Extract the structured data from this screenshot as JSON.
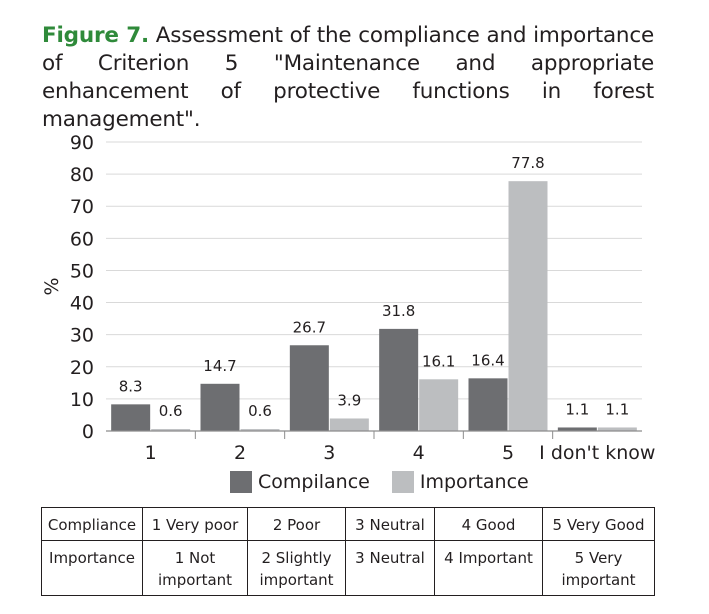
{
  "caption": {
    "figure_label": "Figure 7.",
    "text": "Assessment of the compliance and importance of Criterion 5 \"Maintenance and appropriate enhancement of protective functions in forest management\"."
  },
  "chart_data": {
    "type": "bar",
    "categories": [
      "1",
      "2",
      "3",
      "4",
      "5",
      "I don't know"
    ],
    "series": [
      {
        "name": "Compilance",
        "values": [
          8.3,
          14.7,
          26.7,
          31.8,
          16.4,
          1.1
        ],
        "color": "#6d6e71"
      },
      {
        "name": "Importance",
        "values": [
          0.6,
          0.6,
          3.9,
          16.1,
          77.8,
          1.1
        ],
        "color": "#bcbec0"
      }
    ],
    "ylabel": "%",
    "ylim": [
      0,
      90
    ],
    "yticks": [
      0,
      10,
      20,
      30,
      40,
      50,
      60,
      70,
      80,
      90
    ],
    "grid": true,
    "legend": "bottom",
    "data_labels": true
  },
  "scale_table": {
    "rows": [
      [
        "Compliance",
        "1 Very poor",
        "2 Poor",
        "3 Neutral",
        "4 Good",
        "5 Very Good"
      ],
      [
        "Importance",
        "1 Not important",
        "2 Slightly important",
        "3 Neutral",
        "4 Important",
        "5 Very important"
      ]
    ]
  }
}
